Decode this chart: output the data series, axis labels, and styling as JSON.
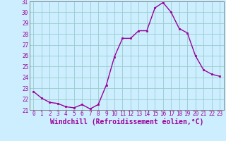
{
  "x": [
    0,
    1,
    2,
    3,
    4,
    5,
    6,
    7,
    8,
    9,
    10,
    11,
    12,
    13,
    14,
    15,
    16,
    17,
    18,
    19,
    20,
    21,
    22,
    23
  ],
  "y": [
    22.7,
    22.1,
    21.7,
    21.6,
    21.3,
    21.2,
    21.5,
    21.1,
    21.5,
    23.3,
    25.9,
    27.6,
    27.6,
    28.3,
    28.3,
    30.4,
    30.9,
    30.0,
    28.5,
    28.1,
    26.0,
    24.7,
    24.3,
    24.1
  ],
  "line_color": "#990099",
  "marker": "s",
  "marker_size": 2.0,
  "bg_color": "#cceeff",
  "grid_color": "#99cccc",
  "xlabel": "Windchill (Refroidissement éolien,°C)",
  "ylim": [
    21,
    31
  ],
  "xlim_left": -0.5,
  "xlim_right": 23.5,
  "yticks": [
    21,
    22,
    23,
    24,
    25,
    26,
    27,
    28,
    29,
    30,
    31
  ],
  "xticks": [
    0,
    1,
    2,
    3,
    4,
    5,
    6,
    7,
    8,
    9,
    10,
    11,
    12,
    13,
    14,
    15,
    16,
    17,
    18,
    19,
    20,
    21,
    22,
    23
  ],
  "tick_label_fontsize": 5.5,
  "xlabel_fontsize": 7.0,
  "line_width": 1.0,
  "spine_color": "#777777"
}
